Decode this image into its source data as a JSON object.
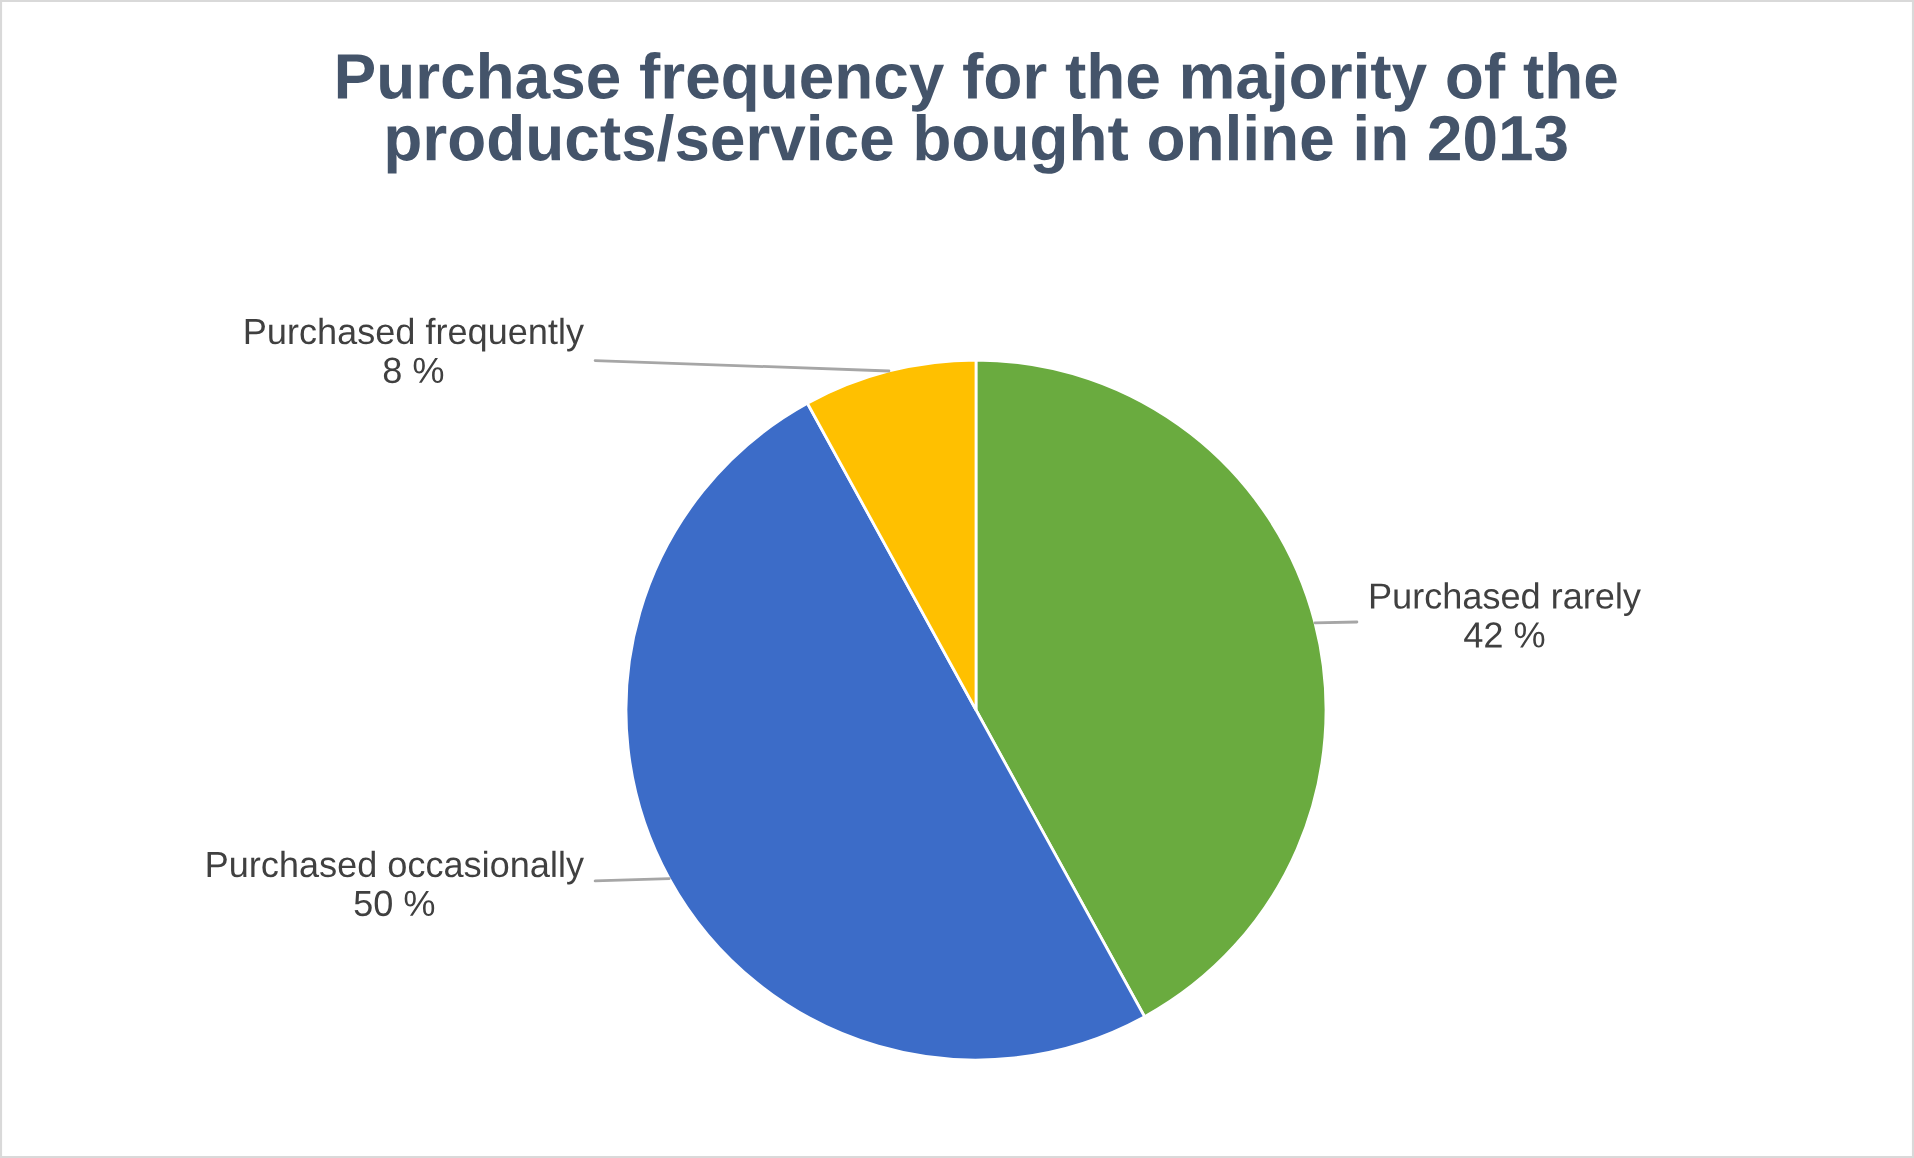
{
  "chart_data": {
    "type": "pie",
    "title": "Purchase frequency for the majority of the\nproducts/service bought online in 2013",
    "categories": [
      "Purchased rarely",
      "Purchased occasionally",
      "Purchased frequently"
    ],
    "values": [
      42,
      50,
      8
    ],
    "value_labels": [
      "42 %",
      "50 %",
      "8 %"
    ],
    "colors": [
      "#6aab3f",
      "#3c6cc8",
      "#ffc000"
    ],
    "legend": false
  }
}
